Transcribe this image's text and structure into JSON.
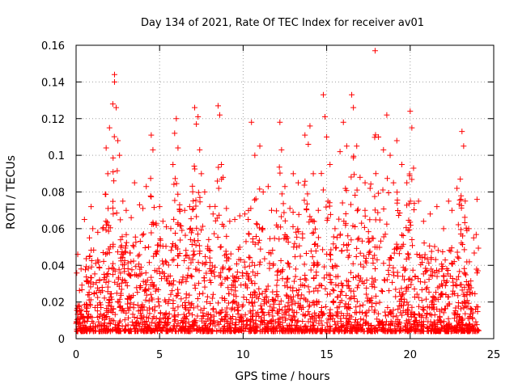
{
  "chart_data": {
    "type": "scatter",
    "title": "Day 134 of 2021, Rate Of TEC Index for receiver av01",
    "xlabel": "GPS time / hours",
    "ylabel": "ROTI / TECUs",
    "xlim": [
      0,
      25
    ],
    "ylim": [
      0,
      0.16
    ],
    "xticks": [
      0,
      5,
      10,
      15,
      20,
      25
    ],
    "yticks": [
      0,
      0.02,
      0.04,
      0.06,
      0.08,
      0.1,
      0.12,
      0.14,
      0.16
    ],
    "xtick_labels": [
      "0",
      "5",
      "10",
      "15",
      "20",
      "25"
    ],
    "ytick_labels": [
      "0",
      "0.02",
      "0.04",
      "0.06",
      "0.08",
      "0.1",
      "0.12",
      "0.14",
      "0.16"
    ],
    "grid": true,
    "marker": "plus",
    "marker_color": "#ff0000",
    "points": [
      [
        0.1,
        0.046
      ],
      [
        0.3,
        0.038
      ],
      [
        0.5,
        0.065
      ],
      [
        0.8,
        0.055
      ],
      [
        0.9,
        0.072
      ],
      [
        1.0,
        0.06
      ],
      [
        1.3,
        0.058
      ],
      [
        1.6,
        0.06
      ],
      [
        1.8,
        0.104
      ],
      [
        1.9,
        0.09
      ],
      [
        2.0,
        0.115
      ],
      [
        2.2,
        0.128
      ],
      [
        2.3,
        0.144
      ],
      [
        2.3,
        0.14
      ],
      [
        2.4,
        0.126
      ],
      [
        2.5,
        0.108
      ],
      [
        2.6,
        0.1
      ],
      [
        2.8,
        0.075
      ],
      [
        3.0,
        0.07
      ],
      [
        3.3,
        0.066
      ],
      [
        3.5,
        0.085
      ],
      [
        3.8,
        0.073
      ],
      [
        4.0,
        0.071
      ],
      [
        4.2,
        0.083
      ],
      [
        4.5,
        0.111
      ],
      [
        4.6,
        0.103
      ],
      [
        4.8,
        0.062
      ],
      [
        5.0,
        0.072
      ],
      [
        5.2,
        0.064
      ],
      [
        5.4,
        0.061
      ],
      [
        5.8,
        0.095
      ],
      [
        5.9,
        0.112
      ],
      [
        6.0,
        0.12
      ],
      [
        6.1,
        0.104
      ],
      [
        6.2,
        0.073
      ],
      [
        6.5,
        0.07
      ],
      [
        6.8,
        0.072
      ],
      [
        7.1,
        0.126
      ],
      [
        7.2,
        0.117
      ],
      [
        7.3,
        0.121
      ],
      [
        7.4,
        0.103
      ],
      [
        7.5,
        0.09
      ],
      [
        7.7,
        0.08
      ],
      [
        8.0,
        0.072
      ],
      [
        8.2,
        0.068
      ],
      [
        8.5,
        0.127
      ],
      [
        8.6,
        0.122
      ],
      [
        8.7,
        0.095
      ],
      [
        8.8,
        0.088
      ],
      [
        9.0,
        0.071
      ],
      [
        9.2,
        0.064
      ],
      [
        9.5,
        0.065
      ],
      [
        9.8,
        0.067
      ],
      [
        10.1,
        0.068
      ],
      [
        10.5,
        0.118
      ],
      [
        10.7,
        0.1
      ],
      [
        11.0,
        0.105
      ],
      [
        11.2,
        0.08
      ],
      [
        11.5,
        0.083
      ],
      [
        11.7,
        0.07
      ],
      [
        12.0,
        0.062
      ],
      [
        12.2,
        0.118
      ],
      [
        12.3,
        0.103
      ],
      [
        12.5,
        0.083
      ],
      [
        12.8,
        0.071
      ],
      [
        13.0,
        0.09
      ],
      [
        13.3,
        0.085
      ],
      [
        13.7,
        0.111
      ],
      [
        13.9,
        0.106
      ],
      [
        14.0,
        0.116
      ],
      [
        14.2,
        0.09
      ],
      [
        14.5,
        0.07
      ],
      [
        14.8,
        0.133
      ],
      [
        14.9,
        0.121
      ],
      [
        15.0,
        0.11
      ],
      [
        15.2,
        0.095
      ],
      [
        15.5,
        0.06
      ],
      [
        15.8,
        0.102
      ],
      [
        16.0,
        0.118
      ],
      [
        16.2,
        0.105
      ],
      [
        16.5,
        0.133
      ],
      [
        16.6,
        0.126
      ],
      [
        16.8,
        0.105
      ],
      [
        17.0,
        0.088
      ],
      [
        17.3,
        0.085
      ],
      [
        17.6,
        0.082
      ],
      [
        17.9,
        0.157
      ],
      [
        18.1,
        0.11
      ],
      [
        18.4,
        0.103
      ],
      [
        18.6,
        0.122
      ],
      [
        18.8,
        0.1
      ],
      [
        19.0,
        0.085
      ],
      [
        19.2,
        0.108
      ],
      [
        19.5,
        0.095
      ],
      [
        19.8,
        0.085
      ],
      [
        20.0,
        0.124
      ],
      [
        20.1,
        0.115
      ],
      [
        20.2,
        0.093
      ],
      [
        20.5,
        0.075
      ],
      [
        20.8,
        0.064
      ],
      [
        21.2,
        0.068
      ],
      [
        21.6,
        0.072
      ],
      [
        22.0,
        0.06
      ],
      [
        22.3,
        0.075
      ],
      [
        22.5,
        0.07
      ],
      [
        22.8,
        0.082
      ],
      [
        23.0,
        0.087
      ],
      [
        23.1,
        0.113
      ],
      [
        23.2,
        0.105
      ],
      [
        23.5,
        0.06
      ],
      [
        23.8,
        0.055
      ],
      [
        24.0,
        0.076
      ]
    ]
  }
}
